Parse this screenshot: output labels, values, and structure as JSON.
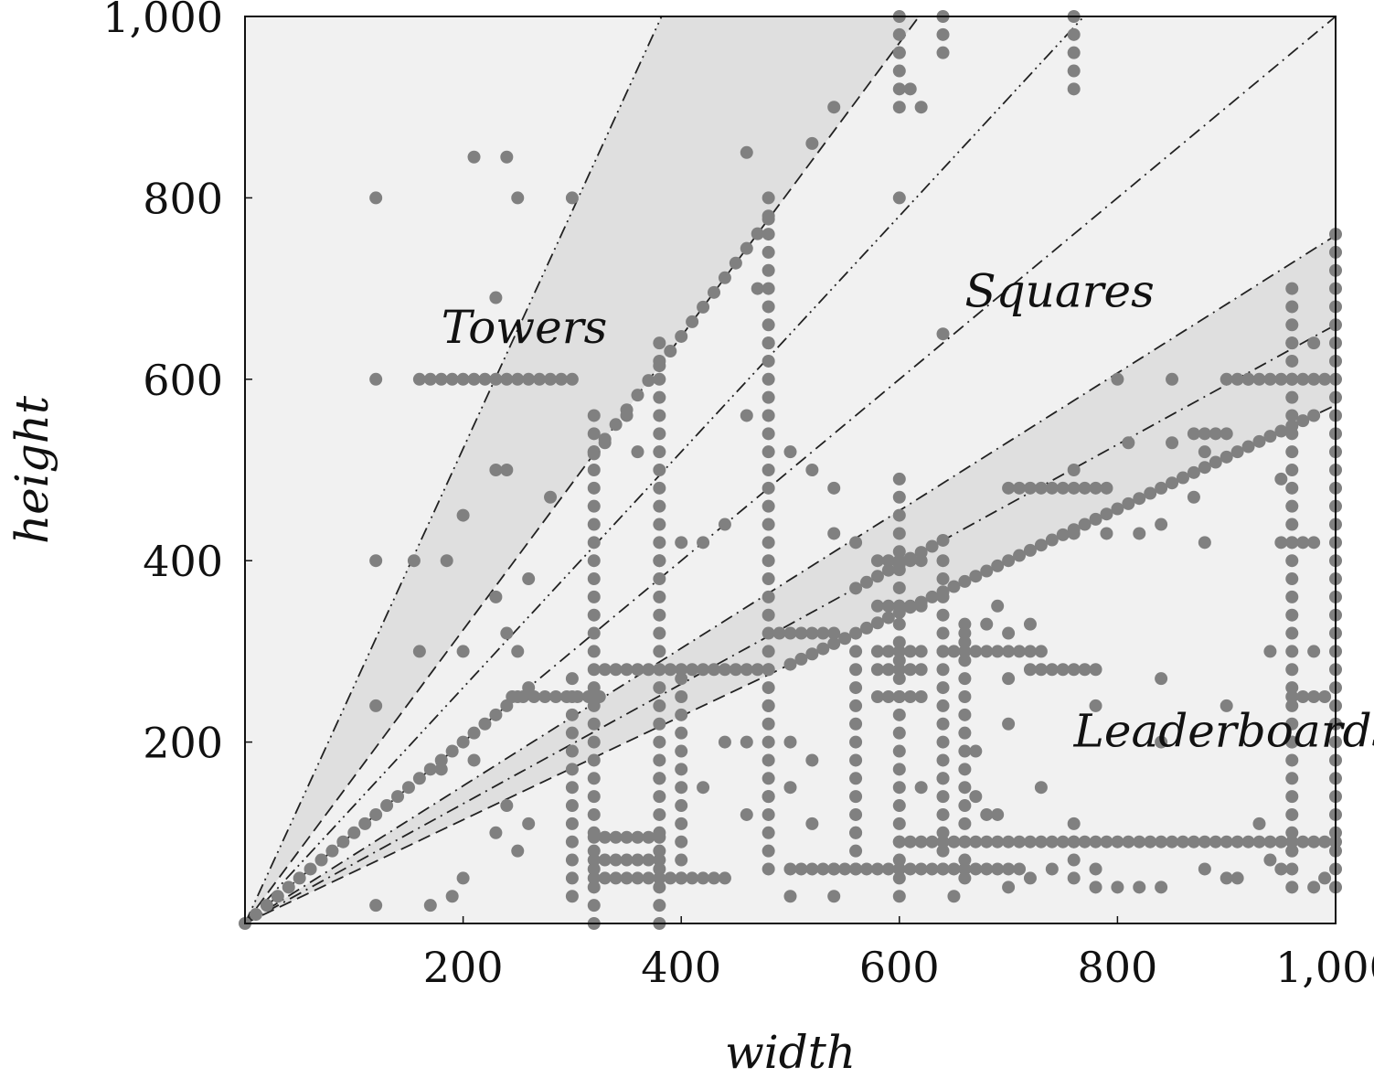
{
  "chart_data": {
    "type": "scatter",
    "xlabel": "width",
    "ylabel": "height",
    "xlim": [
      0,
      1000
    ],
    "ylim": [
      0,
      1000
    ],
    "x_ticks": [
      200,
      400,
      600,
      800,
      1000
    ],
    "x_tick_labels": [
      "200",
      "400",
      "600",
      "800",
      "1,000"
    ],
    "y_ticks": [
      200,
      400,
      600,
      800,
      1000
    ],
    "y_tick_labels": [
      "200",
      "400",
      "600",
      "800",
      "1,000"
    ],
    "grid": false,
    "legend": "none",
    "colors": {
      "background": "#f1f1f1",
      "band": "#dfdfdf",
      "points": "#808080",
      "lines": "#222222"
    },
    "regions": [
      {
        "label": "Towers",
        "x": 180,
        "y": 640
      },
      {
        "label": "Squares",
        "x": 660,
        "y": 680
      },
      {
        "label": "Leaderboards",
        "x": 760,
        "y": 195
      }
    ],
    "bands": [
      {
        "lower_slope": 1.618,
        "upper_slope": 2.618
      },
      {
        "lower_slope": 0.5714,
        "upper_slope": 0.7586
      }
    ],
    "reference_lines": [
      {
        "slope": 2.618,
        "style": "dash-dot-dot"
      },
      {
        "slope": 1.618,
        "style": "dashed"
      },
      {
        "slope": 1.3,
        "style": "dash-dot-dot"
      },
      {
        "slope": 1.0,
        "style": "dash-dot"
      },
      {
        "slope": 0.7586,
        "style": "dash-dot"
      },
      {
        "slope": 0.66,
        "style": "dash-dot"
      },
      {
        "slope": 0.5714,
        "style": "dashed"
      }
    ],
    "rows": [
      {
        "y": 600,
        "x0": 160,
        "x1": 300
      },
      {
        "y": 280,
        "x0": 330,
        "x1": 480
      },
      {
        "y": 250,
        "x0": 245,
        "x1": 330
      },
      {
        "y": 250,
        "x0": 960,
        "x1": 990
      },
      {
        "y": 90,
        "x0": 600,
        "x1": 1000
      },
      {
        "y": 60,
        "x0": 500,
        "x1": 710
      },
      {
        "y": 50,
        "x0": 320,
        "x1": 440
      },
      {
        "y": 95,
        "x0": 320,
        "x1": 380
      },
      {
        "y": 70,
        "x0": 320,
        "x1": 380
      },
      {
        "y": 300,
        "x0": 640,
        "x1": 730
      },
      {
        "y": 280,
        "x0": 720,
        "x1": 780
      },
      {
        "y": 480,
        "x0": 700,
        "x1": 790
      },
      {
        "y": 320,
        "x0": 490,
        "x1": 540
      },
      {
        "y": 350,
        "x0": 580,
        "x1": 620
      },
      {
        "y": 300,
        "x0": 580,
        "x1": 620
      },
      {
        "y": 280,
        "x0": 580,
        "x1": 620
      },
      {
        "y": 250,
        "x0": 580,
        "x1": 620
      },
      {
        "y": 400,
        "x0": 580,
        "x1": 620
      },
      {
        "y": 600,
        "x0": 900,
        "x1": 990
      },
      {
        "y": 540,
        "x0": 870,
        "x1": 900
      },
      {
        "y": 420,
        "x0": 950,
        "x1": 985
      }
    ],
    "columns": [
      {
        "x": 300,
        "y0": 30,
        "y1": 280
      },
      {
        "x": 320,
        "y0": 0,
        "y1": 560
      },
      {
        "x": 380,
        "y0": 0,
        "y1": 640
      },
      {
        "x": 400,
        "y0": 50,
        "y1": 280
      },
      {
        "x": 480,
        "y0": 60,
        "y1": 800
      },
      {
        "x": 560,
        "y0": 60,
        "y1": 310
      },
      {
        "x": 600,
        "y0": 30,
        "y1": 500
      },
      {
        "x": 640,
        "y0": 60,
        "y1": 400
      },
      {
        "x": 660,
        "y0": 50,
        "y1": 330
      },
      {
        "x": 760,
        "y0": 50,
        "y1": 120
      },
      {
        "x": 960,
        "y0": 40,
        "y1": 700
      },
      {
        "x": 1000,
        "y0": 40,
        "y1": 760
      },
      {
        "x": 600,
        "y0": 900,
        "y1": 1000
      },
      {
        "x": 640,
        "y0": 960,
        "y1": 1000
      },
      {
        "x": 760,
        "y0": 920,
        "y1": 1000
      }
    ],
    "diagonals": [
      {
        "slope": 1.0,
        "x0": 0,
        "x1": 260
      },
      {
        "slope": 0.5714,
        "x0": 500,
        "x1": 980
      },
      {
        "slope": 0.66,
        "x0": 560,
        "x1": 640
      },
      {
        "slope": 1.618,
        "x0": 320,
        "x1": 480
      }
    ],
    "points": [
      [
        120,
        800
      ],
      [
        210,
        845
      ],
      [
        240,
        845
      ],
      [
        250,
        800
      ],
      [
        300,
        800
      ],
      [
        120,
        600
      ],
      [
        120,
        400
      ],
      [
        155,
        400
      ],
      [
        185,
        400
      ],
      [
        200,
        450
      ],
      [
        230,
        500
      ],
      [
        240,
        500
      ],
      [
        230,
        690
      ],
      [
        460,
        850
      ],
      [
        470,
        700
      ],
      [
        500,
        520
      ],
      [
        540,
        480
      ],
      [
        540,
        900
      ],
      [
        520,
        860
      ],
      [
        610,
        920
      ],
      [
        620,
        900
      ],
      [
        600,
        800
      ],
      [
        600,
        960
      ],
      [
        640,
        650
      ],
      [
        760,
        500
      ],
      [
        800,
        600
      ],
      [
        810,
        530
      ],
      [
        850,
        530
      ],
      [
        880,
        420
      ],
      [
        920,
        600
      ],
      [
        960,
        640
      ],
      [
        980,
        640
      ],
      [
        950,
        490
      ],
      [
        940,
        300
      ],
      [
        980,
        300
      ],
      [
        960,
        200
      ],
      [
        900,
        240
      ],
      [
        780,
        240
      ],
      [
        850,
        600
      ],
      [
        930,
        110
      ],
      [
        840,
        270
      ],
      [
        840,
        200
      ],
      [
        720,
        330
      ],
      [
        700,
        270
      ],
      [
        730,
        150
      ],
      [
        670,
        140
      ],
      [
        680,
        120
      ],
      [
        700,
        220
      ],
      [
        620,
        150
      ],
      [
        500,
        200
      ],
      [
        520,
        180
      ],
      [
        500,
        150
      ],
      [
        480,
        140
      ],
      [
        460,
        120
      ],
      [
        420,
        150
      ],
      [
        380,
        160
      ],
      [
        440,
        200
      ],
      [
        460,
        200
      ],
      [
        480,
        240
      ],
      [
        250,
        300
      ],
      [
        160,
        300
      ],
      [
        200,
        300
      ],
      [
        230,
        360
      ],
      [
        240,
        320
      ],
      [
        260,
        380
      ],
      [
        280,
        470
      ],
      [
        320,
        520
      ],
      [
        330,
        530
      ],
      [
        350,
        560
      ],
      [
        360,
        520
      ],
      [
        380,
        400
      ],
      [
        400,
        420
      ],
      [
        420,
        420
      ],
      [
        440,
        440
      ],
      [
        460,
        560
      ],
      [
        480,
        640
      ],
      [
        520,
        500
      ],
      [
        540,
        430
      ],
      [
        560,
        420
      ],
      [
        660,
        320
      ],
      [
        680,
        330
      ],
      [
        690,
        350
      ],
      [
        700,
        320
      ],
      [
        760,
        430
      ],
      [
        790,
        430
      ],
      [
        820,
        430
      ],
      [
        840,
        440
      ],
      [
        870,
        470
      ],
      [
        880,
        520
      ],
      [
        120,
        240
      ],
      [
        120,
        20
      ],
      [
        170,
        20
      ],
      [
        190,
        30
      ],
      [
        200,
        50
      ],
      [
        250,
        80
      ],
      [
        230,
        100
      ],
      [
        180,
        170
      ],
      [
        210,
        180
      ],
      [
        240,
        130
      ],
      [
        260,
        110
      ],
      [
        900,
        50
      ],
      [
        910,
        50
      ],
      [
        880,
        60
      ],
      [
        840,
        40
      ],
      [
        820,
        40
      ],
      [
        800,
        40
      ],
      [
        780,
        40
      ],
      [
        690,
        120
      ],
      [
        670,
        190
      ],
      [
        640,
        160
      ],
      [
        560,
        100
      ],
      [
        520,
        110
      ],
      [
        540,
        60
      ],
      [
        500,
        30
      ],
      [
        540,
        30
      ],
      [
        650,
        30
      ],
      [
        700,
        40
      ],
      [
        720,
        50
      ],
      [
        740,
        60
      ],
      [
        780,
        60
      ],
      [
        940,
        70
      ],
      [
        950,
        60
      ],
      [
        980,
        40
      ],
      [
        990,
        50
      ],
      [
        960,
        80
      ]
    ]
  }
}
